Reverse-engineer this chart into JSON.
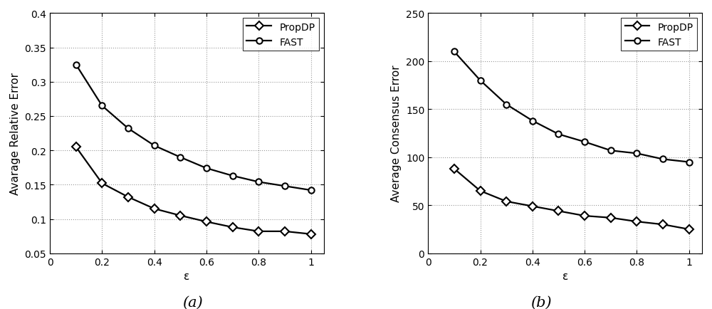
{
  "epsilon": [
    0.1,
    0.2,
    0.3,
    0.4,
    0.5,
    0.6,
    0.7,
    0.8,
    0.9,
    1.0
  ],
  "chart_a": {
    "title": "(a)",
    "ylabel": "Avarage Relative Error",
    "xlabel": "ε",
    "ylim": [
      0.05,
      0.4
    ],
    "yticks": [
      0.05,
      0.1,
      0.15,
      0.2,
      0.25,
      0.3,
      0.35,
      0.4
    ],
    "yticklabels": [
      "0.05",
      "0.1",
      "0.15",
      "0.2",
      "0.25",
      "0.3",
      "0.35",
      "0.4"
    ],
    "xlim": [
      0,
      1.05
    ],
    "xticks": [
      0,
      0.2,
      0.4,
      0.6,
      0.8,
      1.0
    ],
    "xticklabels": [
      "0",
      "0.2",
      "0.4",
      "0.6",
      "0.8",
      "1"
    ],
    "PropDP": [
      0.205,
      0.152,
      0.132,
      0.115,
      0.105,
      0.096,
      0.088,
      0.082,
      0.082,
      0.078
    ],
    "FAST": [
      0.325,
      0.265,
      0.232,
      0.207,
      0.19,
      0.174,
      0.163,
      0.154,
      0.148,
      0.142
    ]
  },
  "chart_b": {
    "title": "(b)",
    "ylabel": "Average Consensus Error",
    "xlabel": "ε",
    "ylim": [
      0,
      250
    ],
    "yticks": [
      0,
      50,
      100,
      150,
      200,
      250
    ],
    "yticklabels": [
      "0",
      "50",
      "100",
      "150",
      "200",
      "250"
    ],
    "xlim": [
      0,
      1.05
    ],
    "xticks": [
      0,
      0.2,
      0.4,
      0.6,
      0.8,
      1.0
    ],
    "xticklabels": [
      "0",
      "0.2",
      "0.4",
      "0.6",
      "0.8",
      "1"
    ],
    "PropDP": [
      88,
      65,
      54,
      49,
      44,
      39,
      37,
      33,
      30,
      25
    ],
    "FAST": [
      210,
      180,
      155,
      138,
      124,
      116,
      107,
      104,
      98,
      95
    ]
  },
  "line_color": "#000000",
  "marker_PropDP": "D",
  "marker_FAST": "o",
  "markersize": 6,
  "linewidth": 1.6,
  "legend_fontsize": 10,
  "axis_fontsize": 11,
  "tick_fontsize": 10,
  "title_fontsize": 15
}
